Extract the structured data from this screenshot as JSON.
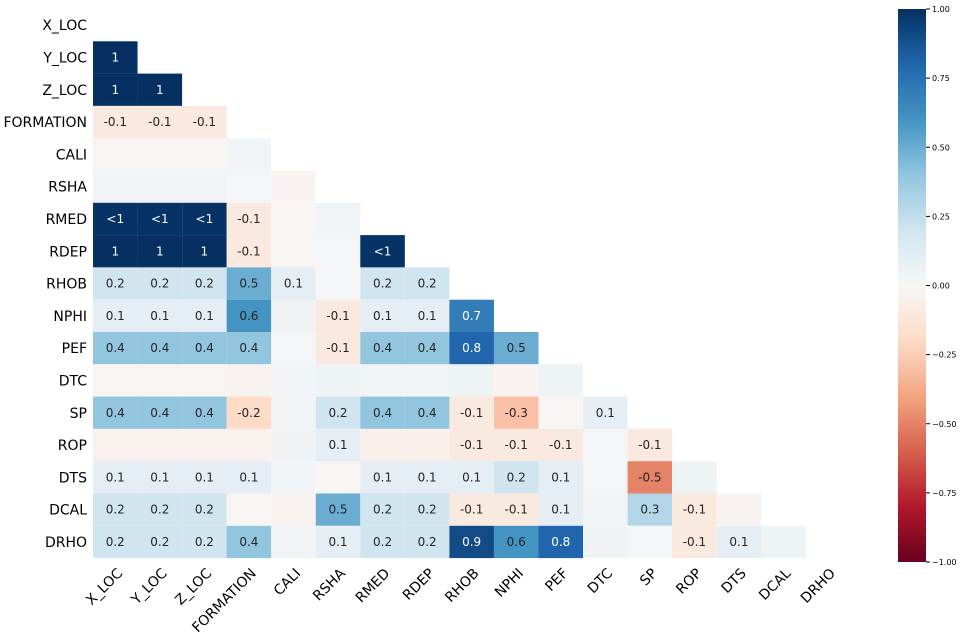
{
  "chart_data": {
    "type": "heatmap",
    "variables": [
      "X_LOC",
      "Y_LOC",
      "Z_LOC",
      "FORMATION",
      "CALI",
      "RSHA",
      "RMED",
      "RDEP",
      "RHOB",
      "NPHI",
      "PEF",
      "DTC",
      "SP",
      "ROP",
      "DTS",
      "DCAL",
      "DRHO"
    ],
    "lower_triangle": [
      [],
      [
        1
      ],
      [
        1,
        1
      ],
      [
        -0.1,
        -0.1,
        -0.1
      ],
      [
        -0.02,
        -0.02,
        -0.02,
        0.03
      ],
      [
        0.03,
        0.03,
        0.03,
        0.02,
        -0.03
      ],
      [
        0.99,
        0.99,
        0.99,
        -0.1,
        -0.02,
        0.03
      ],
      [
        1,
        1,
        1,
        -0.1,
        -0.02,
        0.02,
        0.99
      ],
      [
        0.2,
        0.2,
        0.2,
        0.5,
        0.1,
        0.01,
        0.2,
        0.2
      ],
      [
        0.1,
        0.1,
        0.1,
        0.6,
        0.04,
        -0.1,
        0.1,
        0.1,
        0.7
      ],
      [
        0.4,
        0.4,
        0.4,
        0.4,
        0.02,
        -0.1,
        0.4,
        0.4,
        0.8,
        0.5
      ],
      [
        -0.02,
        -0.02,
        -0.02,
        -0.03,
        0.03,
        0.05,
        0.03,
        0.03,
        0.05,
        -0.03,
        0.05
      ],
      [
        0.4,
        0.4,
        0.4,
        -0.2,
        0.03,
        0.2,
        0.4,
        0.4,
        -0.1,
        -0.3,
        -0.02,
        0.1
      ],
      [
        -0.04,
        -0.04,
        -0.04,
        -0.04,
        0.04,
        0.1,
        -0.05,
        -0.05,
        -0.1,
        -0.1,
        -0.1,
        0.02,
        -0.1
      ],
      [
        0.1,
        0.1,
        0.1,
        0.1,
        0.03,
        -0.02,
        0.1,
        0.1,
        0.1,
        0.2,
        0.1,
        0.02,
        -0.5,
        0.05
      ],
      [
        0.2,
        0.2,
        0.2,
        -0.02,
        -0.03,
        0.5,
        0.2,
        0.2,
        -0.1,
        -0.1,
        0.1,
        0.03,
        0.3,
        -0.1,
        -0.03
      ],
      [
        0.2,
        0.2,
        0.2,
        0.4,
        0.03,
        0.1,
        0.2,
        0.2,
        0.9,
        0.6,
        0.8,
        0.04,
        0.01,
        -0.1,
        0.1,
        0.05
      ]
    ],
    "cell_labels": [
      [],
      [
        "1"
      ],
      [
        "1",
        "1"
      ],
      [
        "-0.1",
        "-0.1",
        "-0.1"
      ],
      [
        "",
        "",
        "",
        ""
      ],
      [
        "",
        "",
        "",
        "",
        ""
      ],
      [
        "<1",
        "<1",
        "<1",
        "-0.1",
        "",
        ""
      ],
      [
        "1",
        "1",
        "1",
        "-0.1",
        "",
        "",
        "<1"
      ],
      [
        "0.2",
        "0.2",
        "0.2",
        "0.5",
        "0.1",
        "",
        "0.2",
        "0.2"
      ],
      [
        "0.1",
        "0.1",
        "0.1",
        "0.6",
        "",
        "-0.1",
        "0.1",
        "0.1",
        "0.7"
      ],
      [
        "0.4",
        "0.4",
        "0.4",
        "0.4",
        "",
        "-0.1",
        "0.4",
        "0.4",
        "0.8",
        "0.5"
      ],
      [
        "",
        "",
        "",
        "",
        "",
        "",
        "",
        "",
        "",
        "",
        ""
      ],
      [
        "0.4",
        "0.4",
        "0.4",
        "-0.2",
        "",
        "0.2",
        "0.4",
        "0.4",
        "-0.1",
        "-0.3",
        "",
        "0.1"
      ],
      [
        "",
        "",
        "",
        "",
        "",
        "0.1",
        "",
        "",
        "-0.1",
        "-0.1",
        "-0.1",
        "",
        "-0.1"
      ],
      [
        "0.1",
        "0.1",
        "0.1",
        "0.1",
        "",
        "",
        "0.1",
        "0.1",
        "0.1",
        "0.2",
        "0.1",
        "",
        "-0.5",
        ""
      ],
      [
        "0.2",
        "0.2",
        "0.2",
        "",
        "",
        "0.5",
        "0.2",
        "0.2",
        "-0.1",
        "-0.1",
        "0.1",
        "",
        "0.3",
        "-0.1",
        ""
      ],
      [
        "0.2",
        "0.2",
        "0.2",
        "0.4",
        "",
        "0.1",
        "0.2",
        "0.2",
        "0.9",
        "0.6",
        "0.8",
        "",
        "",
        "-0.1",
        "0.1",
        ""
      ]
    ],
    "value_range": [
      -1,
      1
    ],
    "colorbar": {
      "colormap": "RdBu",
      "ticks": [
        1.0,
        0.75,
        0.5,
        0.25,
        0.0,
        -0.25,
        -0.5,
        -0.75,
        -1.0
      ],
      "tick_labels": [
        "1.00",
        "0.75",
        "0.50",
        "0.25",
        "0.00",
        "−0.25",
        "−0.50",
        "−0.75",
        "−1.00"
      ]
    },
    "title": "",
    "xlabel": "",
    "ylabel": ""
  }
}
